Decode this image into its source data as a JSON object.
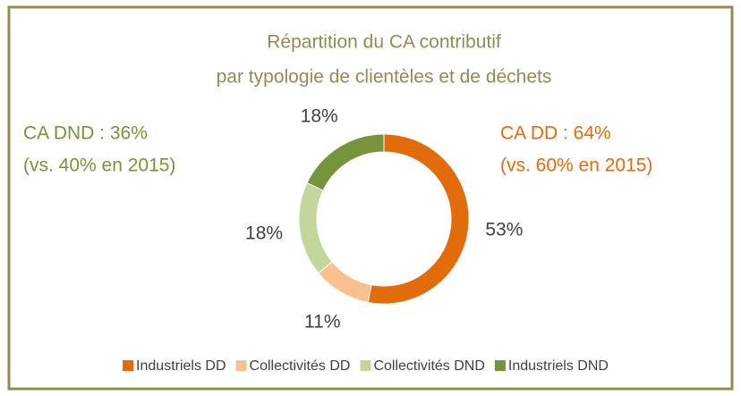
{
  "chart_data": {
    "type": "pie",
    "title": "Répartition du CA contributif",
    "subtitle": "par typologie de clientèles et de déchets",
    "categories": [
      "Industriels DD",
      "Collectivités DD",
      "Collectivités DND",
      "Industriels DND"
    ],
    "values": [
      53,
      11,
      18,
      18
    ],
    "value_labels": [
      "53%",
      "11%",
      "18%",
      "18%"
    ],
    "colors": [
      "#e36c0a",
      "#fac090",
      "#c3d69b",
      "#77933c"
    ],
    "donut": true,
    "legend": "bottom",
    "annotations": [
      {
        "text": "CA DND : 36%",
        "color": "#77933c"
      },
      {
        "text": "(vs. 40% en 2015)",
        "color": "#77933c"
      },
      {
        "text": "CA DD : 64%",
        "color": "#e36c0a"
      },
      {
        "text": "(vs. 60% en 2015)",
        "color": "#e36c0a"
      }
    ]
  }
}
